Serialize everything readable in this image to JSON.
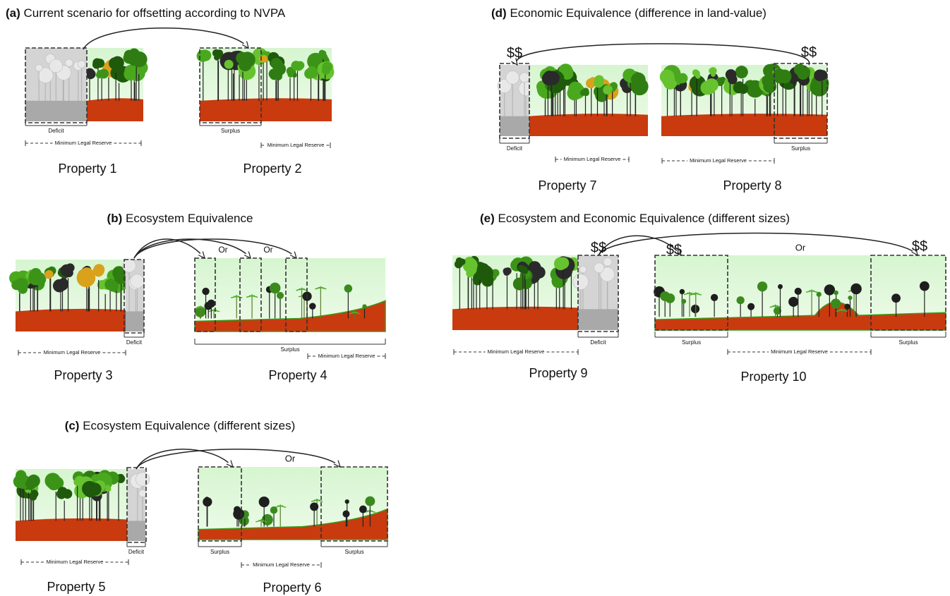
{
  "panels": [
    {
      "label": "(a)",
      "title": "Current scenario for offsetting according to NVPA",
      "properties": [
        {
          "name": "Property 1",
          "labels": [
            "Deficit",
            "Minimum Legal Reserve"
          ]
        },
        {
          "name": "Property 2",
          "labels": [
            "Surplus",
            "Minimum Legal Reserve"
          ]
        }
      ],
      "annotations": []
    },
    {
      "label": "(b)",
      "title": "Ecosystem Equivalence",
      "properties": [
        {
          "name": "Property 3",
          "labels": [
            "Deficit",
            "Minimum Legal Reserve"
          ]
        },
        {
          "name": "Property 4",
          "labels": [
            "Surplus",
            "Minimum Legal Reserve"
          ]
        }
      ],
      "annotations": [
        "Or",
        "Or"
      ]
    },
    {
      "label": "(c)",
      "title": "Ecosystem Equivalence (different sizes)",
      "properties": [
        {
          "name": "Property 5",
          "labels": [
            "Deficit",
            "Minimum Legal Reserve"
          ]
        },
        {
          "name": "Property 6",
          "labels": [
            "Surplus",
            "Surplus",
            "Minimum Legal Reserve"
          ]
        }
      ],
      "annotations": [
        "Or"
      ]
    },
    {
      "label": "(d)",
      "title": "Economic Equivalence (difference in land-value)",
      "properties": [
        {
          "name": "Property 7",
          "labels": [
            "Deficit",
            "Minimum Legal Reserve"
          ]
        },
        {
          "name": "Property 8",
          "labels": [
            "Surplus",
            "Minimum Legal Reserve"
          ]
        }
      ],
      "annotations": [
        "$$",
        "$$"
      ]
    },
    {
      "label": "(e)",
      "title": "Ecosystem and Economic Equivalence (different sizes)",
      "properties": [
        {
          "name": "Property 9",
          "labels": [
            "Deficit",
            "Minimum Legal Reserve"
          ]
        },
        {
          "name": "Property 10",
          "labels": [
            "Surplus",
            "Surplus",
            "Minimum Legal Reserve"
          ]
        }
      ],
      "annotations": [
        "$$",
        "$$",
        "Or",
        "$$"
      ]
    }
  ]
}
